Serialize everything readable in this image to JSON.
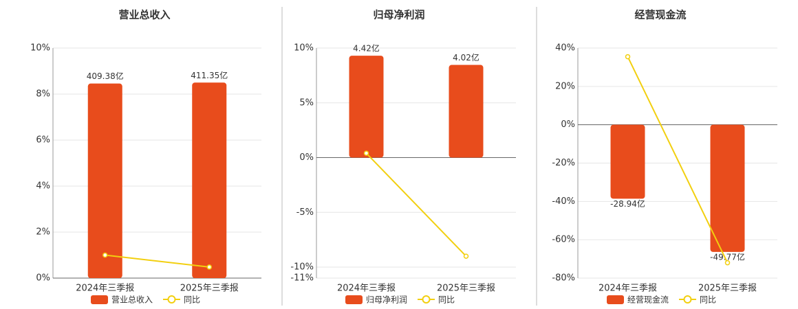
{
  "chart_data": [
    {
      "type": "bar",
      "title": "营业总收入",
      "categories": [
        "2024年三季报",
        "2025年三季报"
      ],
      "series": [
        {
          "name": "营业总收入",
          "type": "bar",
          "color": "#e84c1c",
          "axis": "y2",
          "values": [
            409.38,
            411.35
          ],
          "value_labels": [
            "409.38亿",
            "411.35亿"
          ]
        },
        {
          "name": "同比",
          "type": "line",
          "color": "#f2cf0f",
          "values": [
            1.0,
            0.48
          ]
        }
      ],
      "ylim": [
        0,
        10
      ],
      "yticks": [
        {
          "value": 0,
          "label": "0%"
        },
        {
          "value": 2,
          "label": "2%"
        },
        {
          "value": 4,
          "label": "4%"
        },
        {
          "value": 6,
          "label": "6%"
        },
        {
          "value": 8,
          "label": "8%"
        },
        {
          "value": 10,
          "label": "10%"
        }
      ],
      "y2lim": [
        0,
        484
      ],
      "grid": true
    },
    {
      "type": "bar",
      "title": "归母净利润",
      "categories": [
        "2024年三季报",
        "2025年三季报"
      ],
      "series": [
        {
          "name": "归母净利润",
          "type": "bar",
          "color": "#e84c1c",
          "axis": "y2",
          "values": [
            4.42,
            4.02
          ],
          "value_labels": [
            "4.42亿",
            "4.02亿"
          ]
        },
        {
          "name": "同比",
          "type": "line",
          "color": "#f2cf0f",
          "values": [
            0.4,
            -9.0
          ]
        }
      ],
      "ylim": [
        -11,
        10
      ],
      "yticks": [
        {
          "value": -11,
          "label": "-11%"
        },
        {
          "value": -10,
          "label": "-10%"
        },
        {
          "value": -5,
          "label": "-5%"
        },
        {
          "value": 0,
          "label": "0%"
        },
        {
          "value": 5,
          "label": "5%"
        },
        {
          "value": 10,
          "label": "10%"
        }
      ],
      "y2lim": [
        -5.225,
        4.75
      ],
      "grid": true
    },
    {
      "type": "bar",
      "title": "经营现金流",
      "categories": [
        "2024年三季报",
        "2025年三季报"
      ],
      "series": [
        {
          "name": "经营现金流",
          "type": "bar",
          "color": "#e84c1c",
          "axis": "y2",
          "values": [
            -28.94,
            -49.77
          ],
          "value_labels": [
            "-28.94亿",
            "-49.77亿"
          ]
        },
        {
          "name": "同比",
          "type": "line",
          "color": "#f2cf0f",
          "values": [
            35.5,
            -72.0
          ]
        }
      ],
      "ylim": [
        -80,
        40
      ],
      "yticks": [
        {
          "value": -80,
          "label": "-80%"
        },
        {
          "value": -60,
          "label": "-60%"
        },
        {
          "value": -40,
          "label": "-40%"
        },
        {
          "value": -20,
          "label": "-20%"
        },
        {
          "value": 0,
          "label": "0%"
        },
        {
          "value": 20,
          "label": "20%"
        },
        {
          "value": 40,
          "label": "40%"
        }
      ],
      "y2lim": [
        -60,
        30
      ],
      "grid": true
    }
  ]
}
